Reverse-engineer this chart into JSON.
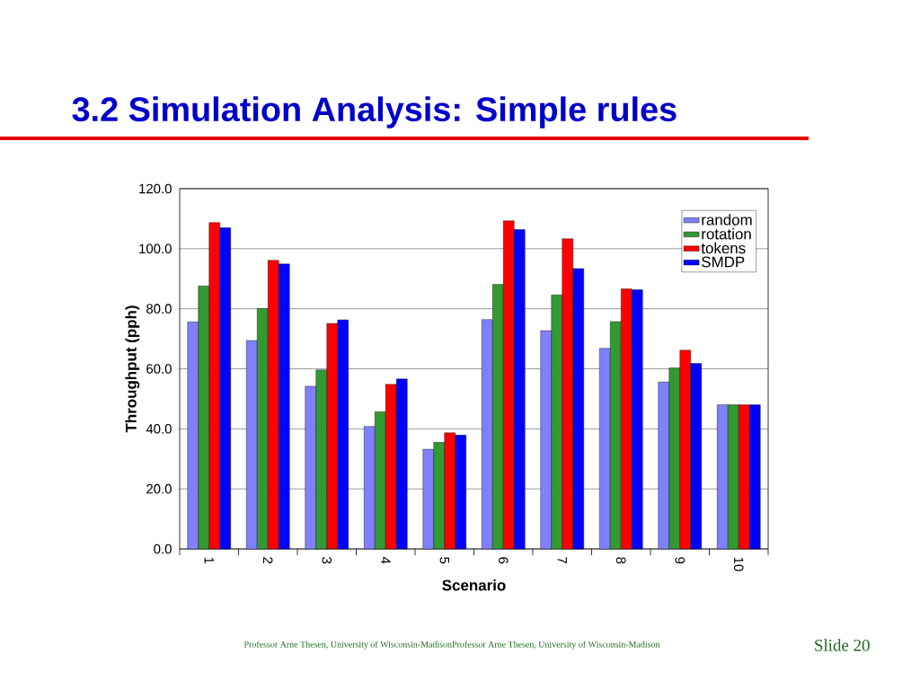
{
  "chart_data": {
    "type": "bar",
    "title": "3.2 Simulation Analysis: Simple rules",
    "xlabel": "Scenario",
    "ylabel": "Throughput (pph)",
    "categories": [
      "1",
      "2",
      "3",
      "4",
      "5",
      "6",
      "7",
      "8",
      "9",
      "10"
    ],
    "series": [
      {
        "name": "random",
        "color": "#8080ff",
        "values": [
          75.6,
          69.4,
          54.2,
          40.8,
          33.2,
          76.4,
          72.7,
          66.8,
          55.6,
          48.0
        ]
      },
      {
        "name": "rotation",
        "color": "#339933",
        "values": [
          87.6,
          80.1,
          59.6,
          45.7,
          35.5,
          88.1,
          84.6,
          75.7,
          60.3,
          48.0
        ]
      },
      {
        "name": "tokens",
        "color": "#ff0000",
        "values": [
          108.7,
          96.1,
          75.1,
          54.8,
          38.7,
          109.3,
          103.3,
          86.6,
          66.2,
          48.0
        ]
      },
      {
        "name": "SMDP",
        "color": "#0000ff",
        "values": [
          107.0,
          94.9,
          76.3,
          56.6,
          37.9,
          106.4,
          93.4,
          86.3,
          61.8,
          48.0
        ]
      }
    ],
    "ylim": [
      0,
      120
    ],
    "yticks": [
      {
        "value": 0,
        "label": "0.0"
      },
      {
        "value": 20,
        "label": "20.0"
      },
      {
        "value": 40,
        "label": "40.0"
      },
      {
        "value": 60,
        "label": "60.0"
      },
      {
        "value": 80,
        "label": "80.0"
      },
      {
        "value": 100,
        "label": "100.0"
      },
      {
        "value": 120,
        "label": "120.0"
      }
    ],
    "grid": "y",
    "legend": "top right",
    "annotations": [
      "Professor Arne Thesen, University of Wisconsin-MadisonProfessor Arne Thesen, University of Wisconsin-Madison",
      "Slide 20"
    ]
  }
}
